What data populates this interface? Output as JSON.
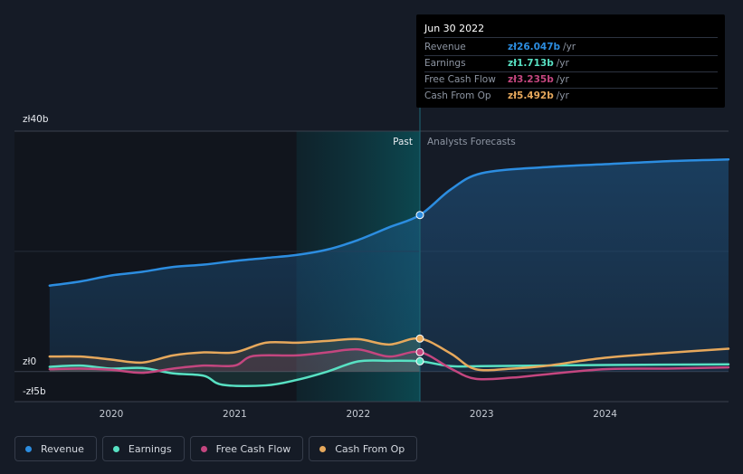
{
  "chart_data": {
    "type": "line",
    "y_unit": "zł",
    "ylim": [
      -5,
      40
    ],
    "y_ticks": [
      {
        "value": 40,
        "label": "zł40b"
      },
      {
        "value": 0,
        "label": "zł0"
      },
      {
        "value": -5,
        "label": "-zł5b"
      }
    ],
    "xlim": [
      2019.45,
      2025.0
    ],
    "x_ticks": [
      {
        "value": 2020,
        "label": "2020"
      },
      {
        "value": 2021,
        "label": "2021"
      },
      {
        "value": 2022,
        "label": "2022"
      },
      {
        "value": 2023,
        "label": "2023"
      },
      {
        "value": 2024,
        "label": "2024"
      }
    ],
    "past_label": "Past",
    "forecast_label": "Analysts Forecasts",
    "divider_x": 2022.5,
    "highlight_start_x": 2021.5,
    "series": [
      {
        "name": "Revenue",
        "color": "#2c8de0",
        "fill": true,
        "points": [
          [
            2019.5,
            14.3
          ],
          [
            2019.75,
            15.0
          ],
          [
            2020.0,
            16.0
          ],
          [
            2020.25,
            16.6
          ],
          [
            2020.5,
            17.4
          ],
          [
            2020.75,
            17.8
          ],
          [
            2021.0,
            18.4
          ],
          [
            2021.25,
            18.9
          ],
          [
            2021.5,
            19.4
          ],
          [
            2021.75,
            20.3
          ],
          [
            2022.0,
            21.9
          ],
          [
            2022.25,
            24.0
          ],
          [
            2022.5,
            26.047
          ],
          [
            2022.75,
            30.3
          ],
          [
            2023.0,
            33.0
          ],
          [
            2023.5,
            34.0
          ],
          [
            2024.0,
            34.5
          ],
          [
            2024.5,
            35.0
          ],
          [
            2025.0,
            35.3
          ]
        ]
      },
      {
        "name": "Earnings",
        "color": "#58e1c3",
        "fill": false,
        "points": [
          [
            2019.5,
            0.8
          ],
          [
            2019.75,
            1.0
          ],
          [
            2020.0,
            0.5
          ],
          [
            2020.25,
            0.6
          ],
          [
            2020.5,
            -0.3
          ],
          [
            2020.75,
            -0.7
          ],
          [
            2020.9,
            -2.2
          ],
          [
            2021.25,
            -2.3
          ],
          [
            2021.5,
            -1.4
          ],
          [
            2021.75,
            0.0
          ],
          [
            2022.0,
            1.7
          ],
          [
            2022.25,
            1.8
          ],
          [
            2022.5,
            1.713
          ],
          [
            2022.75,
            0.9
          ],
          [
            2023.0,
            0.9
          ],
          [
            2023.5,
            1.0
          ],
          [
            2024.0,
            1.1
          ],
          [
            2025.0,
            1.2
          ]
        ]
      },
      {
        "name": "Free Cash Flow",
        "color": "#c4467f",
        "fill": false,
        "points": [
          [
            2019.5,
            0.4
          ],
          [
            2019.75,
            0.5
          ],
          [
            2020.0,
            0.3
          ],
          [
            2020.25,
            -0.2
          ],
          [
            2020.5,
            0.5
          ],
          [
            2020.75,
            1.0
          ],
          [
            2021.0,
            1.0
          ],
          [
            2021.15,
            2.6
          ],
          [
            2021.5,
            2.7
          ],
          [
            2021.75,
            3.2
          ],
          [
            2022.0,
            3.7
          ],
          [
            2022.25,
            2.5
          ],
          [
            2022.5,
            3.235
          ],
          [
            2022.75,
            0.5
          ],
          [
            2022.95,
            -1.2
          ],
          [
            2023.25,
            -1.0
          ],
          [
            2023.5,
            -0.5
          ],
          [
            2024.0,
            0.4
          ],
          [
            2024.5,
            0.5
          ],
          [
            2025.0,
            0.7
          ]
        ]
      },
      {
        "name": "Cash From Op",
        "color": "#e6a85c",
        "fill": false,
        "points": [
          [
            2019.5,
            2.5
          ],
          [
            2019.75,
            2.5
          ],
          [
            2020.0,
            2.0
          ],
          [
            2020.25,
            1.5
          ],
          [
            2020.5,
            2.7
          ],
          [
            2020.75,
            3.2
          ],
          [
            2021.0,
            3.2
          ],
          [
            2021.25,
            4.8
          ],
          [
            2021.5,
            4.8
          ],
          [
            2021.75,
            5.1
          ],
          [
            2022.0,
            5.4
          ],
          [
            2022.25,
            4.5
          ],
          [
            2022.5,
            5.492
          ],
          [
            2022.75,
            3.0
          ],
          [
            2022.95,
            0.4
          ],
          [
            2023.25,
            0.5
          ],
          [
            2023.5,
            0.9
          ],
          [
            2024.0,
            2.3
          ],
          [
            2024.5,
            3.1
          ],
          [
            2025.0,
            3.8
          ]
        ]
      }
    ]
  },
  "tooltip": {
    "date": "Jun 30 2022",
    "rows": [
      {
        "label": "Revenue",
        "value": "zł26.047b",
        "unit": "/yr",
        "color": "#2c8de0"
      },
      {
        "label": "Earnings",
        "value": "zł1.713b",
        "unit": "/yr",
        "color": "#58e1c3"
      },
      {
        "label": "Free Cash Flow",
        "value": "zł3.235b",
        "unit": "/yr",
        "color": "#c4467f"
      },
      {
        "label": "Cash From Op",
        "value": "zł5.492b",
        "unit": "/yr",
        "color": "#e6a85c"
      }
    ]
  },
  "legend": [
    {
      "label": "Revenue",
      "color": "#2c8de0"
    },
    {
      "label": "Earnings",
      "color": "#58e1c3"
    },
    {
      "label": "Free Cash Flow",
      "color": "#c4467f"
    },
    {
      "label": "Cash From Op",
      "color": "#e6a85c"
    }
  ]
}
